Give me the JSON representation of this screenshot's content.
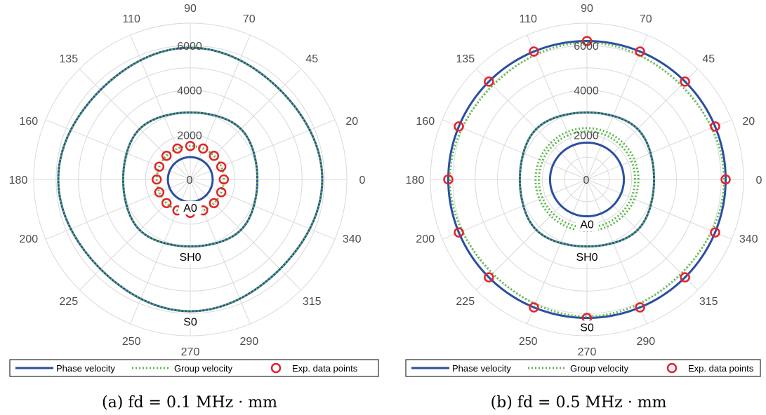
{
  "theme": {
    "grid_color": "#d9d9d9",
    "tick_label_color": "#4d4d4d",
    "phase_color": "#2b4ea2",
    "group_color": "#5cb84a",
    "exp_color": "#e3232b"
  },
  "angle_ticks": [
    "0",
    "20",
    "45",
    "70",
    "90",
    "110",
    "135",
    "160",
    "180",
    "200",
    "225",
    "250",
    "270",
    "290",
    "315",
    "340"
  ],
  "legend_labels": {
    "phase": "Phase velocity",
    "group": "Group velocity",
    "exp": "Exp. data points"
  },
  "chart_data": [
    {
      "type": "polar",
      "panel": "a",
      "caption": "(a)  fd = 0.1 MHz · mm",
      "radial_ticks": [
        "0",
        "2000",
        "4000",
        "6000"
      ],
      "rmax": 7000,
      "theta_unit": "degrees",
      "grid": true,
      "legend_position": "bottom",
      "series": [
        {
          "name": "Phase velocity",
          "mode": "A0",
          "style": "solid",
          "values": [
            {
              "r": 1000
            }
          ]
        },
        {
          "name": "Group velocity",
          "mode": "A0",
          "style": "dotted",
          "values": [
            {
              "r": 1500
            }
          ]
        },
        {
          "name": "Phase velocity",
          "mode": "SH0",
          "style": "solid",
          "values": [
            {
              "r_along_axes": 3000,
              "r_diagonal": 3000,
              "corner_sharpness": 0.35
            }
          ]
        },
        {
          "name": "Group velocity",
          "mode": "SH0",
          "style": "dotted",
          "values": [
            {
              "r_along_axes": 3000,
              "r_diagonal": 3000,
              "corner_sharpness": 0.35
            }
          ]
        },
        {
          "name": "Phase velocity",
          "mode": "S0",
          "style": "solid",
          "values": [
            {
              "r_along_axes": 5900,
              "r_diagonal": 5620,
              "corner_sharpness": 0.05
            }
          ]
        },
        {
          "name": "Group velocity",
          "mode": "S0",
          "style": "dotted",
          "values": [
            {
              "r_along_axes": 5900,
              "r_diagonal": 5620,
              "corner_sharpness": 0.05
            }
          ]
        },
        {
          "name": "Exp. data points",
          "style": "marker",
          "points_theta": [
            0,
            22.5,
            45,
            67.5,
            90,
            112.5,
            135,
            157.5,
            180,
            202.5,
            225,
            247.5,
            270,
            292.5,
            315,
            337.5
          ],
          "r": 1500
        }
      ],
      "mode_labels": [
        {
          "text": "A0",
          "theta": 270,
          "r": 1250
        },
        {
          "text": "SH0",
          "theta": 270,
          "r": 3450
        },
        {
          "text": "S0",
          "theta": 270,
          "r": 6350
        }
      ]
    },
    {
      "type": "polar",
      "panel": "b",
      "caption": "(b)  fd = 0.5 MHz · mm",
      "radial_ticks": [
        "0",
        "2000",
        "4000",
        "6000"
      ],
      "rmax": 7000,
      "theta_unit": "degrees",
      "grid": true,
      "legend_position": "bottom",
      "series": [
        {
          "name": "Phase velocity",
          "mode": "A0",
          "style": "solid",
          "values": [
            {
              "r": 1650
            }
          ]
        },
        {
          "name": "Group velocity",
          "mode": "A0",
          "style": "dotted",
          "values": [
            {
              "r": 2300
            }
          ]
        },
        {
          "name": "Group velocity",
          "mode": "A0",
          "style": "dotted",
          "values": [
            {
              "r": 2150
            }
          ]
        },
        {
          "name": "Phase velocity",
          "mode": "SH0",
          "style": "solid",
          "values": [
            {
              "r_along_axes": 3000,
              "r_diagonal": 3000,
              "corner_sharpness": 0.35
            }
          ]
        },
        {
          "name": "Group velocity",
          "mode": "SH0",
          "style": "dotted",
          "values": [
            {
              "r_along_axes": 3000,
              "r_diagonal": 3000,
              "corner_sharpness": 0.35
            }
          ]
        },
        {
          "name": "Phase velocity",
          "mode": "S0",
          "style": "solid",
          "values": [
            {
              "r": 6200
            }
          ]
        },
        {
          "name": "Group velocity",
          "mode": "S0",
          "style": "dotted",
          "values": [
            {
              "r_along_axes": 6130,
              "r_diagonal": 5900,
              "corner_sharpness": 0.05
            }
          ]
        },
        {
          "name": "Exp. data points",
          "style": "marker",
          "points_theta": [
            0,
            22.5,
            45,
            67.5,
            90,
            112.5,
            135,
            157.5,
            180,
            202.5,
            225,
            247.5,
            270,
            292.5,
            315,
            337.5
          ],
          "r": 6200
        }
      ],
      "mode_labels": [
        {
          "text": "A0",
          "theta": 270,
          "r": 2000
        },
        {
          "text": "SH0",
          "theta": 270,
          "r": 3450
        },
        {
          "text": "S0",
          "theta": 270,
          "r": 6600
        }
      ]
    }
  ]
}
